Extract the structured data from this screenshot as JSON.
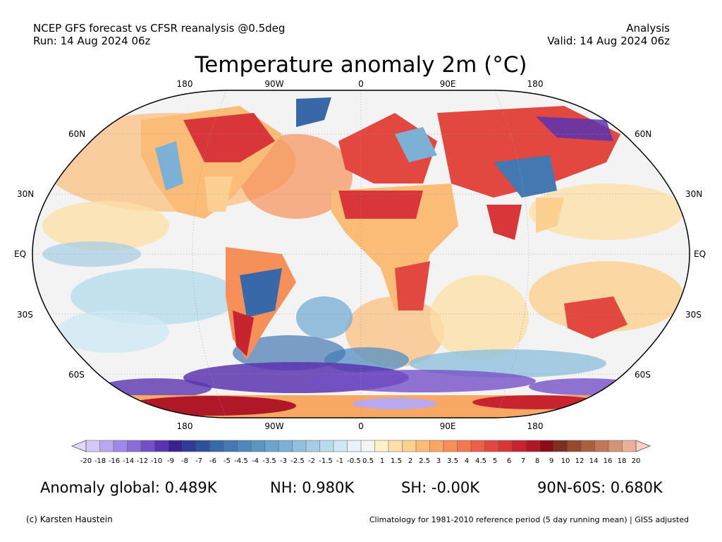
{
  "header": {
    "source": "NCEP GFS forecast vs CFSR reanalysis @0.5deg",
    "run": "Run: 14 Aug 2024 06z",
    "mode": "Analysis",
    "valid": "Valid: 14 Aug 2024 06z"
  },
  "map": {
    "title": "Temperature anomaly 2m (°C)",
    "projection": "robinson",
    "ocean_color": "#f3f3f3",
    "land_outline_color": "#000000",
    "lon_labels_top": [
      "180",
      "90W",
      "0",
      "90E",
      "180"
    ],
    "lon_labels_bottom": [
      "180",
      "90W",
      "0",
      "90E",
      "180"
    ],
    "lat_labels_left": [
      "60N",
      "30N",
      "EQ",
      "30S",
      "60S"
    ],
    "lat_labels_right": [
      "60N",
      "30N",
      "EQ",
      "30S",
      "60S"
    ]
  },
  "colorbar": {
    "ticks": [
      "-20",
      "-18",
      "-16",
      "-14",
      "-12",
      "-10",
      "-9",
      "-8",
      "-7",
      "-6",
      "-5",
      "-4.5",
      "-4",
      "-3.5",
      "-3",
      "-2.5",
      "-2",
      "-1.5",
      "-1",
      "-0.5",
      "0.5",
      "1",
      "1.5",
      "2",
      "2.5",
      "3",
      "3.5",
      "4",
      "4.5",
      "5",
      "6",
      "7",
      "8",
      "9",
      "10",
      "12",
      "14",
      "16",
      "18",
      "20"
    ],
    "colors": [
      "#d4c8f8",
      "#b8a8f0",
      "#9f88e8",
      "#8a6cd8",
      "#7450c8",
      "#5a34b0",
      "#3a2090",
      "#2e3c98",
      "#30509c",
      "#3868a8",
      "#4478b0",
      "#5088bc",
      "#5c94c4",
      "#6ca4cc",
      "#7cb0d4",
      "#90c0dc",
      "#a4cce4",
      "#b8dcec",
      "#d0e8f4",
      "#e8f2f8",
      "#f4f4f4",
      "#fff0c8",
      "#fde0a8",
      "#fcd090",
      "#fbbc78",
      "#f9a864",
      "#f69058",
      "#f27850",
      "#ec6048",
      "#e24840",
      "#d83638",
      "#c82430",
      "#b01828",
      "#8e0c18",
      "#7e3020",
      "#96482c",
      "#a86040",
      "#c07858",
      "#d49478",
      "#e8b098"
    ],
    "under_color": "#e0d8fc",
    "over_color": "#f8d0c0"
  },
  "stats": {
    "global": "Anomaly global: 0.489K",
    "nh": "NH: 0.980K",
    "sh": "SH: -0.00K",
    "arctic_band": "90N-60S: 0.680K"
  },
  "footer": {
    "credit": "(c) Karsten Haustein",
    "note": "Climatology for 1981-2010 reference period (5 day running mean) | GISS adjusted"
  },
  "icons": {
    "colorbar_under": "triangle-left",
    "colorbar_over": "triangle-right"
  }
}
